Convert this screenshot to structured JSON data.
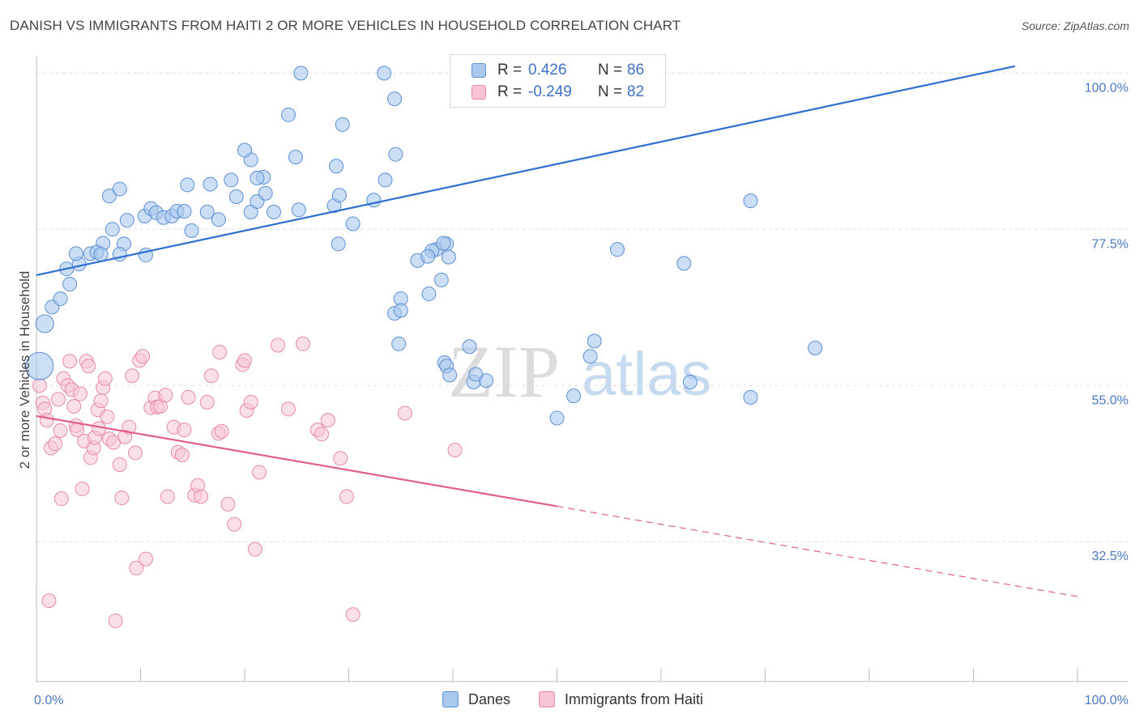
{
  "title": "DANISH VS IMMIGRANTS FROM HAITI 2 OR MORE VEHICLES IN HOUSEHOLD CORRELATION CHART",
  "source": "Source: ZipAtlas.com",
  "watermark": {
    "zip": "ZIP",
    "atlas": "atlas"
  },
  "legend": {
    "danes": {
      "r_label": "R =",
      "r_value": "0.426",
      "n_label": "N =",
      "n_value": "86"
    },
    "haiti": {
      "r_label": "R =",
      "r_value": "-0.249",
      "n_label": "N =",
      "n_value": "82"
    }
  },
  "bottom_legend": {
    "danes": "Danes",
    "haiti": "Immigrants from Haiti"
  },
  "colors": {
    "danes_fill": "#a8c8ee",
    "danes_stroke": "#5b8fd6",
    "danes_line": "#2f6fd0",
    "haiti_fill": "#f8c4d4",
    "haiti_stroke": "#e88aa8",
    "haiti_line": "#e0608a",
    "tick_text": "#4a78c2",
    "grid": "#dddddd"
  },
  "chart_data": {
    "type": "scatter",
    "title": "DANISH VS IMMIGRANTS FROM HAITI 2 OR MORE VEHICLES IN HOUSEHOLD CORRELATION CHART",
    "xlabel": "",
    "ylabel": "2 or more Vehicles in Household",
    "x_tick_labels": [
      "0.0%",
      "100.0%"
    ],
    "y_tick_labels": [
      {
        "value": 100.0,
        "label": "100.0%"
      },
      {
        "value": 77.5,
        "label": "77.5%"
      },
      {
        "value": 55.0,
        "label": "55.0%"
      },
      {
        "value": 32.5,
        "label": "32.5%"
      }
    ],
    "xlim": [
      0,
      100
    ],
    "ylim": [
      12,
      101.5
    ],
    "series": [
      {
        "name": "Danes",
        "r": 0.426,
        "n": 86,
        "trend": {
          "x0": 0,
          "y0": 70.9,
          "x1": 94,
          "y1": 101.0,
          "dashed_to": null
        },
        "points": [
          [
            0.3,
            57.8
          ],
          [
            0.8,
            63.9
          ],
          [
            1.5,
            66.3
          ],
          [
            2.3,
            67.5
          ],
          [
            3.2,
            69.6
          ],
          [
            2.9,
            71.8
          ],
          [
            4.1,
            72.5
          ],
          [
            3.8,
            74.0
          ],
          [
            5.2,
            74.0
          ],
          [
            6.4,
            75.5
          ],
          [
            5.8,
            74.2
          ],
          [
            6.2,
            73.9
          ],
          [
            7.3,
            77.5
          ],
          [
            8.4,
            75.4
          ],
          [
            8.0,
            73.9
          ],
          [
            8.7,
            78.8
          ],
          [
            7.0,
            82.3
          ],
          [
            8.0,
            83.3
          ],
          [
            10.5,
            73.8
          ],
          [
            10.4,
            79.4
          ],
          [
            11.0,
            80.5
          ],
          [
            11.5,
            79.9
          ],
          [
            12.2,
            79.2
          ],
          [
            13.0,
            79.4
          ],
          [
            13.5,
            80.1
          ],
          [
            14.2,
            80.1
          ],
          [
            14.5,
            83.9
          ],
          [
            14.9,
            77.3
          ],
          [
            16.7,
            84.0
          ],
          [
            16.4,
            80.0
          ],
          [
            17.5,
            78.9
          ],
          [
            18.7,
            84.6
          ],
          [
            19.2,
            82.2
          ],
          [
            20.6,
            87.5
          ],
          [
            20.0,
            88.9
          ],
          [
            20.6,
            80.0
          ],
          [
            21.8,
            85.0
          ],
          [
            21.2,
            81.5
          ],
          [
            22.0,
            82.7
          ],
          [
            21.2,
            84.9
          ],
          [
            22.8,
            80.0
          ],
          [
            24.9,
            87.9
          ],
          [
            24.2,
            94.0
          ],
          [
            25.2,
            80.3
          ],
          [
            25.4,
            100.0
          ],
          [
            28.6,
            80.9
          ],
          [
            28.8,
            86.6
          ],
          [
            29.4,
            92.6
          ],
          [
            29.1,
            82.4
          ],
          [
            30.4,
            78.3
          ],
          [
            29.0,
            75.4
          ],
          [
            32.4,
            81.7
          ],
          [
            33.5,
            84.6
          ],
          [
            34.5,
            88.3
          ],
          [
            34.4,
            96.3
          ],
          [
            33.4,
            100.0
          ],
          [
            35.0,
            67.5
          ],
          [
            38.9,
            70.2
          ],
          [
            38.4,
            74.6
          ],
          [
            38.0,
            74.4
          ],
          [
            34.8,
            61.0
          ],
          [
            34.4,
            65.4
          ],
          [
            35.0,
            65.8
          ],
          [
            37.7,
            68.2
          ],
          [
            36.6,
            73.0
          ],
          [
            37.6,
            73.6
          ],
          [
            39.4,
            75.4
          ],
          [
            39.1,
            75.5
          ],
          [
            39.6,
            73.5
          ],
          [
            39.2,
            58.3
          ],
          [
            39.4,
            57.8
          ],
          [
            41.6,
            60.6
          ],
          [
            42.0,
            55.5
          ],
          [
            43.2,
            55.7
          ],
          [
            50.0,
            50.3
          ],
          [
            51.6,
            53.5
          ],
          [
            53.2,
            59.2
          ],
          [
            53.6,
            61.4
          ],
          [
            55.8,
            74.6
          ],
          [
            62.2,
            72.6
          ],
          [
            68.6,
            81.6
          ],
          [
            74.8,
            60.4
          ],
          [
            68.6,
            53.3
          ],
          [
            39.7,
            56.5
          ],
          [
            42.2,
            56.6
          ],
          [
            62.8,
            55.5
          ]
        ]
      },
      {
        "name": "Immigrants from Haiti",
        "r": -0.249,
        "n": 82,
        "trend": {
          "x0": 0,
          "y0": 50.6,
          "x1": 50,
          "y1": 37.6,
          "dashed_to": {
            "x": 100,
            "y": 24.6
          }
        },
        "points": [
          [
            0.3,
            55.0
          ],
          [
            0.6,
            52.5
          ],
          [
            0.8,
            51.6
          ],
          [
            1.0,
            50.0
          ],
          [
            1.2,
            24.0
          ],
          [
            1.4,
            46.0
          ],
          [
            1.8,
            46.6
          ],
          [
            2.1,
            53.0
          ],
          [
            2.3,
            48.5
          ],
          [
            2.4,
            38.7
          ],
          [
            2.6,
            56.0
          ],
          [
            3.0,
            55.0
          ],
          [
            3.2,
            58.5
          ],
          [
            3.4,
            54.4
          ],
          [
            3.6,
            52.0
          ],
          [
            3.8,
            49.2
          ],
          [
            3.9,
            48.6
          ],
          [
            4.2,
            53.8
          ],
          [
            4.4,
            40.1
          ],
          [
            4.6,
            47.0
          ],
          [
            4.8,
            58.5
          ],
          [
            5.0,
            57.8
          ],
          [
            5.2,
            44.6
          ],
          [
            5.5,
            46.0
          ],
          [
            5.6,
            47.5
          ],
          [
            5.9,
            51.5
          ],
          [
            6.0,
            48.8
          ],
          [
            6.2,
            52.8
          ],
          [
            6.4,
            54.7
          ],
          [
            6.6,
            56.0
          ],
          [
            6.8,
            50.5
          ],
          [
            7.0,
            47.3
          ],
          [
            7.4,
            46.8
          ],
          [
            7.6,
            21.1
          ],
          [
            8.0,
            43.6
          ],
          [
            8.2,
            38.8
          ],
          [
            8.5,
            47.6
          ],
          [
            8.9,
            49.0
          ],
          [
            9.2,
            56.4
          ],
          [
            9.5,
            45.3
          ],
          [
            9.6,
            28.7
          ],
          [
            9.9,
            58.6
          ],
          [
            10.2,
            59.2
          ],
          [
            10.5,
            30.0
          ],
          [
            11.0,
            51.8
          ],
          [
            11.4,
            53.2
          ],
          [
            11.6,
            51.9
          ],
          [
            11.9,
            52.0
          ],
          [
            12.4,
            53.6
          ],
          [
            12.6,
            39.0
          ],
          [
            13.2,
            49.0
          ],
          [
            13.6,
            45.4
          ],
          [
            14.0,
            45.0
          ],
          [
            14.2,
            48.6
          ],
          [
            14.6,
            53.3
          ],
          [
            15.2,
            39.2
          ],
          [
            15.5,
            40.6
          ],
          [
            15.8,
            39.0
          ],
          [
            16.4,
            52.6
          ],
          [
            16.8,
            56.4
          ],
          [
            17.5,
            48.1
          ],
          [
            17.6,
            59.8
          ],
          [
            17.8,
            48.4
          ],
          [
            18.4,
            37.9
          ],
          [
            19.0,
            35.0
          ],
          [
            19.8,
            58.0
          ],
          [
            20.0,
            58.6
          ],
          [
            20.2,
            51.4
          ],
          [
            20.6,
            52.6
          ],
          [
            21.4,
            42.5
          ],
          [
            21.0,
            31.4
          ],
          [
            23.2,
            60.8
          ],
          [
            24.2,
            51.6
          ],
          [
            25.6,
            61.0
          ],
          [
            27.0,
            48.6
          ],
          [
            27.4,
            48.0
          ],
          [
            28.0,
            50.0
          ],
          [
            29.2,
            44.5
          ],
          [
            29.8,
            39.0
          ],
          [
            30.4,
            22.0
          ],
          [
            35.4,
            51.0
          ],
          [
            40.2,
            45.7
          ]
        ]
      }
    ]
  }
}
